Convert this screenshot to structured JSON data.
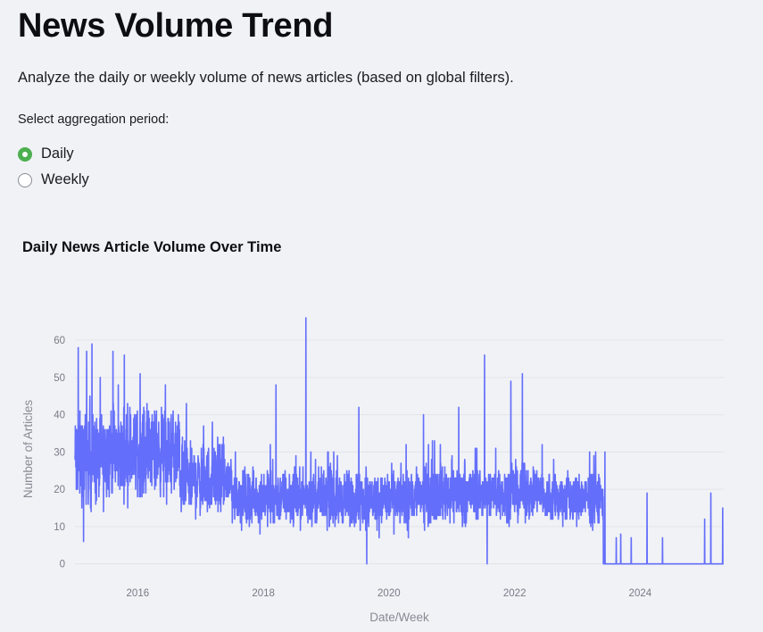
{
  "page": {
    "title": "News Volume Trend",
    "subtitle": "Analyze the daily or weekly volume of news articles (based on global filters)."
  },
  "aggregation": {
    "label": "Select aggregation period:",
    "options": [
      {
        "label": "Daily",
        "checked": true
      },
      {
        "label": "Weekly",
        "checked": false
      }
    ]
  },
  "chart_data": {
    "type": "line",
    "title": "Daily News Article Volume Over Time",
    "xlabel": "Date/Week",
    "ylabel": "Number of Articles",
    "x_ticks": [
      "2016",
      "2018",
      "2020",
      "2022",
      "2024"
    ],
    "y_ticks": [
      0,
      10,
      20,
      30,
      40,
      50,
      60
    ],
    "xlim": [
      "2015-01-01",
      "2025-05-01"
    ],
    "ylim": [
      -2,
      66
    ],
    "grid": true,
    "line_color": "#636efa",
    "series": [
      {
        "segments": [
          {
            "start": "2015-01-01",
            "end": "2015-07-01",
            "low": 10,
            "high": 46
          },
          {
            "start": "2015-07-01",
            "end": "2016-09-01",
            "low": 14,
            "high": 46
          },
          {
            "start": "2016-09-01",
            "end": "2017-07-01",
            "low": 9,
            "high": 36
          },
          {
            "start": "2017-07-01",
            "end": "2019-01-01",
            "low": 8,
            "high": 28
          },
          {
            "start": "2019-01-01",
            "end": "2020-06-01",
            "low": 7,
            "high": 28
          },
          {
            "start": "2020-06-01",
            "end": "2021-06-01",
            "low": 8,
            "high": 30
          },
          {
            "start": "2021-06-01",
            "end": "2022-06-01",
            "low": 9,
            "high": 29
          },
          {
            "start": "2022-06-01",
            "end": "2023-06-01",
            "low": 8,
            "high": 27
          },
          {
            "start": "2023-06-01",
            "end": "2025-05-01",
            "low": 0,
            "high": 0
          }
        ],
        "peaks": [
          {
            "date": "2015-01-20",
            "value": 58
          },
          {
            "date": "2015-03-10",
            "value": 57
          },
          {
            "date": "2015-04-10",
            "value": 59
          },
          {
            "date": "2015-08-10",
            "value": 57
          },
          {
            "date": "2015-10-15",
            "value": 56
          },
          {
            "date": "2016-01-15",
            "value": 51
          },
          {
            "date": "2016-06-10",
            "value": 48
          },
          {
            "date": "2016-10-10",
            "value": 43
          },
          {
            "date": "2017-03-10",
            "value": 38
          },
          {
            "date": "2018-02-10",
            "value": 32
          },
          {
            "date": "2018-03-15",
            "value": 48
          },
          {
            "date": "2018-09-05",
            "value": 66
          },
          {
            "date": "2019-01-10",
            "value": 30
          },
          {
            "date": "2019-07-10",
            "value": 42
          },
          {
            "date": "2020-04-10",
            "value": 32
          },
          {
            "date": "2020-07-20",
            "value": 40
          },
          {
            "date": "2021-02-10",
            "value": 42
          },
          {
            "date": "2021-07-10",
            "value": 56
          },
          {
            "date": "2021-12-10",
            "value": 49
          },
          {
            "date": "2022-02-15",
            "value": 51
          },
          {
            "date": "2022-06-10",
            "value": 32
          },
          {
            "date": "2023-06-10",
            "value": 30
          },
          {
            "date": "2023-08-15",
            "value": 7
          },
          {
            "date": "2023-09-10",
            "value": 8
          },
          {
            "date": "2023-11-10",
            "value": 7
          },
          {
            "date": "2024-02-10",
            "value": 19
          },
          {
            "date": "2024-05-10",
            "value": 7
          },
          {
            "date": "2025-01-10",
            "value": 12
          },
          {
            "date": "2025-02-15",
            "value": 19
          },
          {
            "date": "2025-04-25",
            "value": 15
          }
        ],
        "troughs": [
          {
            "date": "2015-02-20",
            "value": 6
          },
          {
            "date": "2019-08-25",
            "value": 0
          },
          {
            "date": "2021-07-25",
            "value": 0
          }
        ]
      }
    ]
  }
}
